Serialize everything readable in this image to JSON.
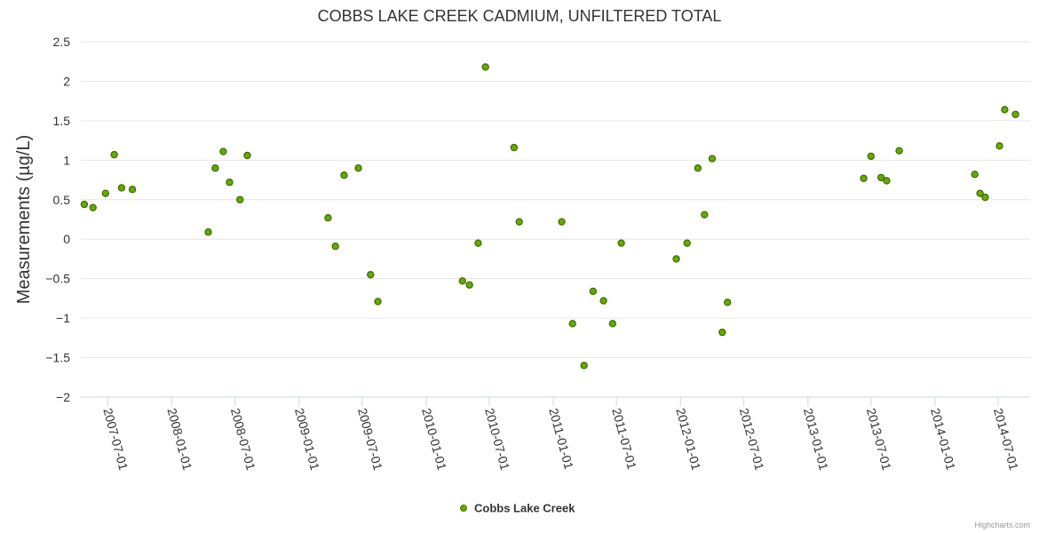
{
  "chart_data": {
    "type": "scatter",
    "title": "COBBS LAKE CREEK CADMIUM, UNFILTERED TOTAL",
    "xlabel": "",
    "ylabel": "Measurements (µg/L)",
    "ylim": [
      -2,
      2.5
    ],
    "y_ticks": [
      "2.5",
      "2",
      "1.5",
      "1",
      "0.5",
      "0",
      "−0.5",
      "−1",
      "−1.5",
      "−2"
    ],
    "y_tick_values": [
      2.5,
      2,
      1.5,
      1,
      0.5,
      0,
      -0.5,
      -1,
      -1.5,
      -2
    ],
    "xlim": [
      "2007-04-15",
      "2014-10-01"
    ],
    "x_ticks": [
      "2007-07-01",
      "2008-01-01",
      "2008-07-01",
      "2009-01-01",
      "2009-07-01",
      "2010-01-01",
      "2010-07-01",
      "2011-01-01",
      "2011-07-01",
      "2012-01-01",
      "2012-07-01",
      "2013-01-01",
      "2013-07-01",
      "2014-01-01",
      "2014-07-01"
    ],
    "series": [
      {
        "name": "Cobbs Lake Creek",
        "color": "#66aa00",
        "points": [
          [
            "2007-04-25",
            0.44
          ],
          [
            "2007-05-20",
            0.4
          ],
          [
            "2007-06-25",
            0.58
          ],
          [
            "2007-07-20",
            1.07
          ],
          [
            "2007-08-10",
            0.65
          ],
          [
            "2007-09-10",
            0.63
          ],
          [
            "2008-04-15",
            0.09
          ],
          [
            "2008-05-05",
            0.9
          ],
          [
            "2008-05-28",
            1.11
          ],
          [
            "2008-06-15",
            0.72
          ],
          [
            "2008-07-15",
            0.5
          ],
          [
            "2008-08-05",
            1.06
          ],
          [
            "2009-03-25",
            0.27
          ],
          [
            "2009-04-15",
            -0.09
          ],
          [
            "2009-05-10",
            0.81
          ],
          [
            "2009-06-20",
            0.9
          ],
          [
            "2009-07-25",
            -0.45
          ],
          [
            "2009-08-15",
            -0.79
          ],
          [
            "2010-04-15",
            -0.53
          ],
          [
            "2010-05-05",
            -0.58
          ],
          [
            "2010-05-30",
            -0.05
          ],
          [
            "2010-06-20",
            2.18
          ],
          [
            "2010-09-10",
            1.16
          ],
          [
            "2010-09-25",
            0.22
          ],
          [
            "2011-01-25",
            0.22
          ],
          [
            "2011-02-25",
            -1.07
          ],
          [
            "2011-03-30",
            -1.6
          ],
          [
            "2011-04-25",
            -0.66
          ],
          [
            "2011-05-25",
            -0.78
          ],
          [
            "2011-06-20",
            -1.07
          ],
          [
            "2011-07-15",
            -0.05
          ],
          [
            "2011-12-20",
            -0.25
          ],
          [
            "2012-01-20",
            -0.05
          ],
          [
            "2012-02-20",
            0.9
          ],
          [
            "2012-03-10",
            0.31
          ],
          [
            "2012-04-01",
            1.02
          ],
          [
            "2012-04-30",
            -1.18
          ],
          [
            "2012-05-15",
            -0.8
          ],
          [
            "2013-06-10",
            0.77
          ],
          [
            "2013-07-01",
            1.05
          ],
          [
            "2013-07-30",
            0.78
          ],
          [
            "2013-08-15",
            0.74
          ],
          [
            "2013-09-20",
            1.12
          ],
          [
            "2014-04-25",
            0.82
          ],
          [
            "2014-05-10",
            0.58
          ],
          [
            "2014-05-25",
            0.53
          ],
          [
            "2014-07-05",
            1.18
          ],
          [
            "2014-07-20",
            1.64
          ],
          [
            "2014-08-20",
            1.58
          ]
        ]
      }
    ],
    "legend_position": "bottom-center",
    "grid": true
  },
  "credits": "Highcharts.com"
}
